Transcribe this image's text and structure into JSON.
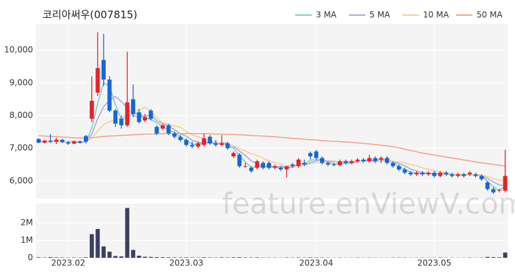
{
  "chart_data": {
    "type": "candlestick",
    "title": "코리아써우(007815)",
    "watermark": "feature.enViewV.com",
    "up_color": "#e8202a",
    "down_color": "#1467d6",
    "grid": true,
    "legend": "top-right",
    "xlim": [
      -0.5,
      79.5
    ],
    "xticks": [
      {
        "value": 5,
        "label": "2023.02"
      },
      {
        "value": 25,
        "label": "2023.03"
      },
      {
        "value": 47,
        "label": "2023.04"
      },
      {
        "value": 67,
        "label": "2023.05"
      }
    ],
    "ylim": [
      5450,
      10800
    ],
    "yticks": [
      {
        "value": 6000,
        "label": "6,000"
      },
      {
        "value": 7000,
        "label": "7,000"
      },
      {
        "value": 8000,
        "label": "8,000"
      },
      {
        "value": 9000,
        "label": "9,000"
      },
      {
        "value": 10000,
        "label": "10,000"
      }
    ],
    "open": [
      7280,
      7170,
      7230,
      7200,
      7260,
      7180,
      7140,
      7210,
      7370,
      7900,
      8700,
      9700,
      9100,
      8150,
      7900,
      7700,
      8500,
      8100,
      7850,
      8150,
      7650,
      7600,
      7700,
      7450,
      7350,
      7250,
      7100,
      7050,
      7100,
      7350,
      7150,
      7100,
      7150,
      6750,
      6800,
      6450,
      6400,
      6400,
      6550,
      6550,
      6400,
      6400,
      6350,
      6500,
      6450,
      6550,
      6850,
      6900,
      6700,
      6550,
      6500,
      6480,
      6600,
      6550,
      6600,
      6650,
      6600,
      6700,
      6650,
      6700,
      6550,
      6450,
      6350,
      6250,
      6200,
      6250,
      6200,
      6250,
      6150,
      6250,
      6200,
      6150,
      6200,
      6200,
      6200,
      6150,
      5950,
      5750,
      5700,
      5700
    ],
    "high": [
      7300,
      7260,
      7430,
      7320,
      7280,
      7220,
      7240,
      7230,
      7400,
      9200,
      10550,
      10500,
      9200,
      8200,
      8000,
      9950,
      8950,
      8200,
      8050,
      8200,
      7700,
      7750,
      7750,
      7500,
      7400,
      7300,
      7200,
      7200,
      7450,
      7400,
      7250,
      7400,
      7200,
      6900,
      6850,
      6550,
      6450,
      6650,
      6600,
      6600,
      6500,
      6450,
      6450,
      6550,
      6700,
      6650,
      6900,
      6950,
      6750,
      6600,
      6550,
      6650,
      6650,
      6650,
      6700,
      6700,
      6800,
      6750,
      6750,
      6750,
      6600,
      6500,
      6400,
      6300,
      6300,
      6300,
      6300,
      6300,
      6300,
      6300,
      6250,
      6250,
      6250,
      6300,
      6250,
      6200,
      6000,
      5800,
      5750,
      6950
    ],
    "low": [
      7150,
      7140,
      7160,
      7130,
      7160,
      7100,
      7120,
      7140,
      7150,
      7800,
      8600,
      8900,
      8100,
      7650,
      7600,
      7650,
      7950,
      7750,
      7800,
      7850,
      7400,
      7550,
      7400,
      7300,
      7200,
      7050,
      7000,
      7000,
      7050,
      7100,
      7050,
      7050,
      6950,
      6700,
      6400,
      6400,
      6250,
      6350,
      6350,
      6350,
      6350,
      6300,
      6100,
      6400,
      6400,
      6450,
      6650,
      6650,
      6500,
      6450,
      6450,
      6450,
      6500,
      6500,
      6550,
      6550,
      6550,
      6550,
      6550,
      6500,
      6400,
      6300,
      6200,
      6150,
      6150,
      6150,
      6150,
      6100,
      6100,
      6150,
      6100,
      6100,
      6100,
      6150,
      6100,
      6000,
      5700,
      5600,
      5650,
      5650
    ],
    "close": [
      7170,
      7230,
      7200,
      7260,
      7180,
      7140,
      7210,
      7170,
      7200,
      8450,
      9450,
      9100,
      8150,
      7750,
      7700,
      8400,
      8050,
      7800,
      7950,
      7900,
      7450,
      7700,
      7450,
      7350,
      7250,
      7100,
      7050,
      7150,
      7300,
      7150,
      7100,
      7150,
      7000,
      6850,
      6450,
      6450,
      6300,
      6600,
      6400,
      6400,
      6450,
      6350,
      6450,
      6450,
      6650,
      6500,
      6750,
      6700,
      6550,
      6500,
      6480,
      6600,
      6550,
      6600,
      6650,
      6600,
      6700,
      6600,
      6700,
      6550,
      6450,
      6350,
      6250,
      6200,
      6250,
      6200,
      6250,
      6150,
      6250,
      6200,
      6150,
      6200,
      6150,
      6250,
      6150,
      6050,
      5750,
      5650,
      5720,
      6150
    ],
    "ma_series": [
      {
        "name": "3 MA",
        "color": "#72d3cf",
        "values": [
          7200,
          7210,
          7200,
          7230,
          7210,
          7190,
          7180,
          7170,
          7190,
          7610,
          8370,
          9000,
          8900,
          8330,
          7870,
          7950,
          8050,
          8080,
          7930,
          7880,
          7770,
          7680,
          7530,
          7500,
          7350,
          7230,
          7130,
          7100,
          7170,
          7200,
          7180,
          7130,
          7080,
          7000,
          6770,
          6580,
          6400,
          6450,
          6430,
          6470,
          6420,
          6400,
          6420,
          6420,
          6520,
          6530,
          6630,
          6650,
          6670,
          6580,
          6510,
          6530,
          6540,
          6580,
          6600,
          6620,
          6650,
          6630,
          6670,
          6620,
          6570,
          6450,
          6350,
          6270,
          6230,
          6220,
          6230,
          6200,
          6220,
          6200,
          6200,
          6180,
          6170,
          6200,
          6180,
          6150,
          5980,
          5820,
          5710,
          5840
        ]
      },
      {
        "name": "5 MA",
        "color": "#b9a2d6",
        "values": [
          7210,
          7210,
          7200,
          7210,
          7210,
          7200,
          7200,
          7190,
          7180,
          7430,
          7900,
          8270,
          8470,
          8580,
          8430,
          8220,
          8010,
          7940,
          7980,
          8020,
          7830,
          7760,
          7670,
          7570,
          7440,
          7370,
          7240,
          7180,
          7170,
          7150,
          7150,
          7170,
          7140,
          7050,
          6910,
          6780,
          6610,
          6530,
          6440,
          6430,
          6430,
          6440,
          6410,
          6420,
          6470,
          6480,
          6560,
          6610,
          6630,
          6600,
          6600,
          6570,
          6540,
          6550,
          6580,
          6600,
          6620,
          6630,
          6650,
          6630,
          6600,
          6530,
          6460,
          6360,
          6300,
          6250,
          6230,
          6210,
          6220,
          6210,
          6200,
          6200,
          6190,
          6190,
          6180,
          6160,
          6070,
          5970,
          5870,
          5860
        ]
      },
      {
        "name": "10 MA",
        "color": "#f4cf95",
        "values": [
          7220,
          7220,
          7210,
          7210,
          7210,
          7200,
          7200,
          7200,
          7200,
          7300,
          7530,
          7720,
          7810,
          7870,
          7920,
          8040,
          8120,
          8180,
          8250,
          8120,
          7920,
          7780,
          7720,
          7680,
          7640,
          7510,
          7410,
          7350,
          7290,
          7220,
          7190,
          7140,
          7100,
          7070,
          6990,
          6910,
          6830,
          6780,
          6690,
          6620,
          6560,
          6500,
          6450,
          6440,
          6460,
          6470,
          6520,
          6550,
          6560,
          6570,
          6570,
          6590,
          6600,
          6600,
          6600,
          6600,
          6600,
          6590,
          6600,
          6600,
          6600,
          6580,
          6550,
          6500,
          6460,
          6400,
          6360,
          6310,
          6270,
          6240,
          6210,
          6200,
          6200,
          6200,
          6190,
          6180,
          6130,
          6070,
          6020,
          6010
        ]
      },
      {
        "name": "50 MA",
        "color": "#f4a28d",
        "values": [
          7380,
          7370,
          7360,
          7350,
          7340,
          7330,
          7320,
          7310,
          7300,
          7320,
          7340,
          7360,
          7370,
          7380,
          7390,
          7400,
          7410,
          7420,
          7430,
          7430,
          7440,
          7440,
          7450,
          7450,
          7450,
          7450,
          7450,
          7440,
          7440,
          7440,
          7430,
          7430,
          7420,
          7420,
          7410,
          7400,
          7390,
          7380,
          7370,
          7360,
          7350,
          7330,
          7320,
          7300,
          7290,
          7270,
          7260,
          7250,
          7230,
          7220,
          7210,
          7200,
          7190,
          7180,
          7160,
          7150,
          7130,
          7110,
          7090,
          7070,
          7050,
          7010,
          6970,
          6930,
          6890,
          6850,
          6820,
          6790,
          6760,
          6730,
          6700,
          6670,
          6640,
          6610,
          6580,
          6550,
          6530,
          6500,
          6480,
          6450
        ]
      }
    ],
    "volume": {
      "color": "#3b3f63",
      "ylim": [
        0,
        3000000
      ],
      "yticks": [
        0,
        {
          "value": 1000000,
          "label": "1M"
        },
        {
          "value": 2000000,
          "label": "2M"
        }
      ],
      "values": [
        30000,
        20000,
        40000,
        25000,
        20000,
        15000,
        20000,
        15000,
        30000,
        1350000,
        1650000,
        650000,
        350000,
        100000,
        80000,
        2850000,
        450000,
        120000,
        60000,
        50000,
        40000,
        35000,
        30000,
        25000,
        20000,
        25000,
        20000,
        15000,
        30000,
        20000,
        15000,
        25000,
        20000,
        30000,
        35000,
        20000,
        20000,
        25000,
        15000,
        15000,
        15000,
        10000,
        20000,
        15000,
        20000,
        15000,
        25000,
        20000,
        15000,
        10000,
        10000,
        15000,
        10000,
        10000,
        15000,
        10000,
        15000,
        10000,
        10000,
        10000,
        15000,
        15000,
        15000,
        10000,
        10000,
        10000,
        10000,
        10000,
        15000,
        10000,
        10000,
        10000,
        10000,
        15000,
        10000,
        15000,
        50000,
        40000,
        30000,
        300000
      ]
    }
  }
}
